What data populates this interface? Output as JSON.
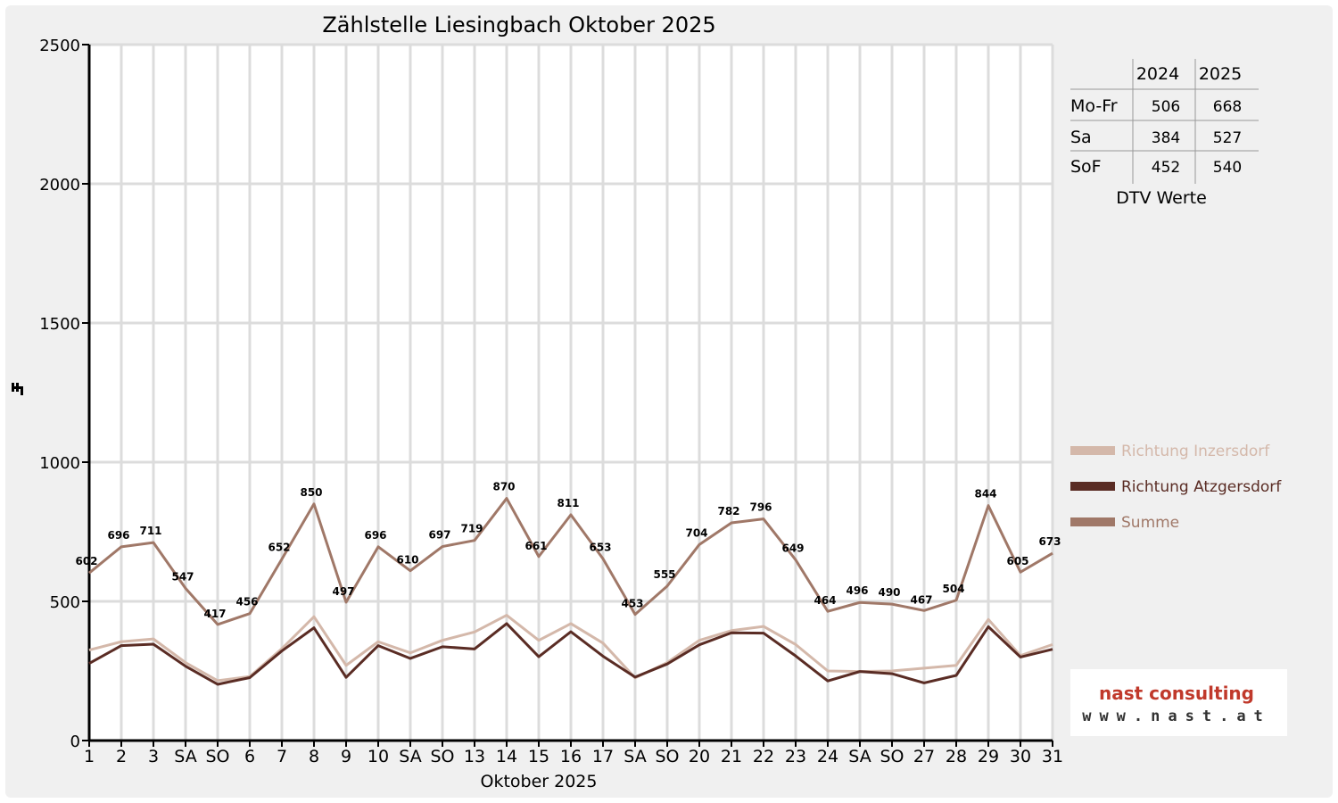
{
  "chart_data": {
    "type": "line",
    "title": "Zählstelle Liesingbach Oktober 2025",
    "xlabel": "Oktober 2025",
    "ylabel": "",
    "ylim": [
      0,
      2500
    ],
    "yticks": [
      0,
      500,
      1000,
      1500,
      2000,
      2500
    ],
    "grid": true,
    "legend_position": "right",
    "categories": [
      "1",
      "2",
      "3",
      "SA",
      "SO",
      "6",
      "7",
      "8",
      "9",
      "10",
      "SA",
      "SO",
      "13",
      "14",
      "15",
      "16",
      "17",
      "SA",
      "SO",
      "20",
      "21",
      "22",
      "23",
      "24",
      "SA",
      "SO",
      "27",
      "28",
      "29",
      "30",
      "31"
    ],
    "weekend_color": "#ff0000",
    "series": [
      {
        "name": "Richtung Inzersdorf",
        "color": "#d4b8aa",
        "values": [
          325,
          355,
          365,
          280,
          215,
          230,
          330,
          445,
          270,
          355,
          315,
          360,
          390,
          450,
          360,
          420,
          350,
          225,
          280,
          360,
          395,
          410,
          345,
          250,
          248,
          250,
          260,
          270,
          435,
          305,
          345
        ]
      },
      {
        "name": "Richtung Atzgersdorf",
        "color": "#5a2c24",
        "values": [
          277,
          341,
          346,
          267,
          202,
          226,
          322,
          405,
          227,
          341,
          295,
          337,
          329,
          420,
          301,
          391,
          303,
          228,
          275,
          344,
          387,
          386,
          304,
          214,
          248,
          240,
          207,
          234,
          409,
          300,
          328
        ]
      },
      {
        "name": "Summe",
        "color": "#a07868",
        "values": [
          602,
          696,
          711,
          547,
          417,
          456,
          652,
          850,
          497,
          696,
          610,
          697,
          719,
          870,
          661,
          811,
          653,
          453,
          555,
          704,
          782,
          796,
          649,
          464,
          496,
          490,
          467,
          504,
          844,
          605,
          673
        ]
      }
    ]
  },
  "dtv_table": {
    "headers": [
      "2024",
      "2025"
    ],
    "rows": [
      {
        "label": "Mo-Fr",
        "v2024": "506",
        "v2025": "668"
      },
      {
        "label": "Sa",
        "v2024": "384",
        "v2025": "527"
      },
      {
        "label": "SoF",
        "v2024": "452",
        "v2025": "540"
      }
    ],
    "caption": "DTV Werte"
  },
  "logo": {
    "main": "nast consulting",
    "sub": "www.nast.at",
    "color": "#c0392b"
  }
}
